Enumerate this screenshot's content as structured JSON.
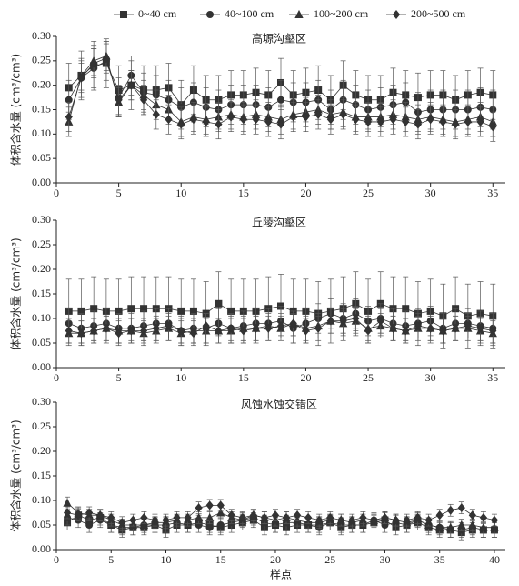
{
  "chart_data": [
    {
      "type": "line",
      "title": "高塬沟壑区",
      "ylabel": "体积含水量 (cm³/cm³)",
      "xlim": [
        0,
        36
      ],
      "xticks": [
        0,
        5,
        10,
        15,
        20,
        25,
        30,
        35
      ],
      "ylim": [
        0,
        0.3
      ],
      "yticks": [
        {
          "value": 0,
          "label": "0.00"
        },
        0.05,
        {
          "value": 0.1,
          "label": "0.10"
        },
        0.15,
        {
          "value": 0.2,
          "label": "0.20"
        },
        0.25,
        {
          "value": 0.3,
          "label": "0.30"
        }
      ],
      "x": [
        1,
        2,
        3,
        4,
        5,
        6,
        7,
        8,
        9,
        10,
        11,
        12,
        13,
        14,
        15,
        16,
        17,
        18,
        19,
        20,
        21,
        22,
        23,
        24,
        25,
        26,
        27,
        28,
        29,
        30,
        31,
        32,
        33,
        34,
        35
      ],
      "series": [
        {
          "name": "0~40 cm",
          "marker": "square",
          "color": "#333333",
          "error": 0.05,
          "values": [
            0.195,
            0.22,
            0.24,
            0.245,
            0.19,
            0.2,
            0.19,
            0.19,
            0.195,
            0.16,
            0.19,
            0.17,
            0.17,
            0.18,
            0.18,
            0.185,
            0.18,
            0.205,
            0.18,
            0.185,
            0.19,
            0.17,
            0.2,
            0.18,
            0.17,
            0.17,
            0.185,
            0.18,
            0.175,
            0.18,
            0.18,
            0.17,
            0.18,
            0.185,
            0.18
          ]
        },
        {
          "name": "40~100 cm",
          "marker": "circle",
          "color": "#333333",
          "error": 0.04,
          "values": [
            0.17,
            0.215,
            0.235,
            0.25,
            0.175,
            0.22,
            0.185,
            0.18,
            0.17,
            0.155,
            0.165,
            0.155,
            0.15,
            0.16,
            0.16,
            0.16,
            0.155,
            0.17,
            0.165,
            0.165,
            0.17,
            0.15,
            0.17,
            0.16,
            0.15,
            0.155,
            0.16,
            0.165,
            0.145,
            0.15,
            0.15,
            0.15,
            0.15,
            0.155,
            0.15
          ]
        },
        {
          "name": "100~200 cm",
          "marker": "triangle",
          "color": "#333333",
          "error": 0.03,
          "values": [
            0.125,
            0.22,
            0.25,
            0.26,
            0.165,
            0.2,
            0.18,
            0.16,
            0.15,
            0.125,
            0.135,
            0.13,
            0.135,
            0.14,
            0.135,
            0.14,
            0.135,
            0.13,
            0.14,
            0.145,
            0.15,
            0.14,
            0.145,
            0.135,
            0.135,
            0.135,
            0.14,
            0.135,
            0.13,
            0.135,
            0.13,
            0.125,
            0.13,
            0.135,
            0.125
          ]
        },
        {
          "name": "200~500 cm",
          "marker": "diamond",
          "color": "#333333",
          "error": 0.03,
          "values": [
            0.135,
            0.215,
            0.245,
            0.255,
            0.17,
            0.2,
            0.17,
            0.14,
            0.13,
            0.12,
            0.13,
            0.125,
            0.12,
            0.135,
            0.13,
            0.13,
            0.125,
            0.12,
            0.135,
            0.135,
            0.14,
            0.13,
            0.14,
            0.13,
            0.125,
            0.125,
            0.13,
            0.125,
            0.12,
            0.13,
            0.125,
            0.12,
            0.125,
            0.125,
            0.115
          ]
        }
      ]
    },
    {
      "type": "line",
      "title": "丘陵沟壑区",
      "ylabel": "体积含水量 (cm³/cm³)",
      "xlim": [
        0,
        36
      ],
      "xticks": [
        0,
        5,
        10,
        15,
        20,
        25,
        30,
        35
      ],
      "ylim": [
        0,
        0.3
      ],
      "yticks": [
        {
          "value": 0,
          "label": "0.00"
        },
        0.05,
        {
          "value": 0.1,
          "label": "0.10"
        },
        0.15,
        {
          "value": 0.2,
          "label": "0.20"
        },
        0.25,
        {
          "value": 0.3,
          "label": "0.30"
        }
      ],
      "x": [
        1,
        2,
        3,
        4,
        5,
        6,
        7,
        8,
        9,
        10,
        11,
        12,
        13,
        14,
        15,
        16,
        17,
        18,
        19,
        20,
        21,
        22,
        23,
        24,
        25,
        26,
        27,
        28,
        29,
        30,
        31,
        32,
        33,
        34,
        35
      ],
      "series": [
        {
          "marker": "square",
          "color": "#333333",
          "error": 0.065,
          "values": [
            0.115,
            0.115,
            0.12,
            0.115,
            0.115,
            0.12,
            0.12,
            0.12,
            0.12,
            0.115,
            0.115,
            0.11,
            0.13,
            0.115,
            0.115,
            0.115,
            0.12,
            0.125,
            0.115,
            0.115,
            0.11,
            0.115,
            0.12,
            0.13,
            0.115,
            0.13,
            0.12,
            0.12,
            0.11,
            0.115,
            0.105,
            0.12,
            0.105,
            0.11,
            0.105
          ]
        },
        {
          "marker": "circle",
          "color": "#333333",
          "error": 0.03,
          "values": [
            0.09,
            0.08,
            0.085,
            0.09,
            0.08,
            0.08,
            0.085,
            0.09,
            0.09,
            0.075,
            0.08,
            0.08,
            0.09,
            0.08,
            0.085,
            0.09,
            0.09,
            0.095,
            0.08,
            0.09,
            0.1,
            0.11,
            0.1,
            0.11,
            0.095,
            0.1,
            0.09,
            0.085,
            0.09,
            0.095,
            0.08,
            0.09,
            0.09,
            0.085,
            0.08
          ]
        },
        {
          "marker": "triangle",
          "color": "#333333",
          "error": 0.025,
          "values": [
            0.07,
            0.07,
            0.075,
            0.08,
            0.075,
            0.075,
            0.07,
            0.075,
            0.08,
            0.07,
            0.075,
            0.075,
            0.075,
            0.075,
            0.08,
            0.08,
            0.085,
            0.08,
            0.09,
            0.08,
            0.085,
            0.095,
            0.09,
            0.095,
            0.08,
            0.085,
            0.08,
            0.075,
            0.08,
            0.08,
            0.075,
            0.08,
            0.08,
            0.075,
            0.07
          ]
        },
        {
          "marker": "diamond",
          "color": "#333333",
          "error": 0.025,
          "values": [
            0.075,
            0.07,
            0.075,
            0.08,
            0.07,
            0.075,
            0.075,
            0.08,
            0.085,
            0.075,
            0.07,
            0.085,
            0.075,
            0.08,
            0.075,
            0.08,
            0.08,
            0.085,
            0.09,
            0.075,
            0.08,
            0.095,
            0.095,
            0.1,
            0.075,
            0.095,
            0.08,
            0.075,
            0.085,
            0.08,
            0.075,
            0.08,
            0.085,
            0.08,
            0.075
          ]
        }
      ]
    },
    {
      "type": "line",
      "title": "风蚀水蚀交错区",
      "ylabel": "体积含水量 (cm³/cm³)",
      "xlabel": "样点",
      "xlim": [
        0,
        41
      ],
      "xticks": [
        0,
        5,
        10,
        15,
        20,
        25,
        30,
        35,
        40
      ],
      "ylim": [
        0,
        0.3
      ],
      "yticks": [
        {
          "value": 0,
          "label": "0.00"
        },
        0.05,
        {
          "value": 0.1,
          "label": "0.10"
        },
        0.15,
        {
          "value": 0.2,
          "label": "0.20"
        },
        0.25,
        {
          "value": 0.3,
          "label": "0.30"
        }
      ],
      "x": [
        1,
        2,
        3,
        4,
        5,
        6,
        7,
        8,
        9,
        10,
        11,
        12,
        13,
        14,
        15,
        16,
        17,
        18,
        19,
        20,
        21,
        22,
        23,
        24,
        25,
        26,
        27,
        28,
        29,
        30,
        31,
        32,
        33,
        34,
        35,
        36,
        37,
        38,
        39,
        40
      ],
      "series": [
        {
          "marker": "square",
          "color": "#333333",
          "error": 0.015,
          "values": [
            0.055,
            0.07,
            0.06,
            0.065,
            0.05,
            0.04,
            0.045,
            0.045,
            0.05,
            0.04,
            0.05,
            0.05,
            0.055,
            0.05,
            0.045,
            0.05,
            0.055,
            0.06,
            0.045,
            0.05,
            0.045,
            0.05,
            0.05,
            0.05,
            0.055,
            0.045,
            0.05,
            0.05,
            0.055,
            0.06,
            0.045,
            0.05,
            0.055,
            0.045,
            0.04,
            0.04,
            0.035,
            0.04,
            0.04,
            0.04
          ]
        },
        {
          "marker": "circle",
          "color": "#333333",
          "error": 0.015,
          "values": [
            0.065,
            0.06,
            0.05,
            0.06,
            0.05,
            0.045,
            0.045,
            0.05,
            0.05,
            0.05,
            0.055,
            0.05,
            0.05,
            0.045,
            0.05,
            0.055,
            0.06,
            0.065,
            0.055,
            0.05,
            0.055,
            0.055,
            0.05,
            0.045,
            0.055,
            0.05,
            0.05,
            0.05,
            0.06,
            0.05,
            0.055,
            0.05,
            0.06,
            0.05,
            0.045,
            0.04,
            0.04,
            0.045,
            0.04,
            0.04
          ]
        },
        {
          "marker": "triangle",
          "color": "#333333",
          "error": 0.012,
          "values": [
            0.095,
            0.075,
            0.07,
            0.07,
            0.06,
            0.05,
            0.05,
            0.05,
            0.055,
            0.055,
            0.06,
            0.06,
            0.065,
            0.065,
            0.075,
            0.065,
            0.06,
            0.07,
            0.065,
            0.06,
            0.065,
            0.06,
            0.055,
            0.055,
            0.06,
            0.06,
            0.055,
            0.06,
            0.06,
            0.065,
            0.06,
            0.055,
            0.06,
            0.05,
            0.045,
            0.045,
            0.05,
            0.05,
            0.045,
            0.045
          ]
        },
        {
          "marker": "diamond",
          "color": "#333333",
          "error": 0.012,
          "values": [
            0.075,
            0.07,
            0.075,
            0.07,
            0.065,
            0.055,
            0.06,
            0.065,
            0.06,
            0.06,
            0.065,
            0.065,
            0.085,
            0.09,
            0.09,
            0.07,
            0.065,
            0.07,
            0.065,
            0.07,
            0.065,
            0.07,
            0.065,
            0.06,
            0.065,
            0.06,
            0.06,
            0.065,
            0.06,
            0.065,
            0.06,
            0.06,
            0.065,
            0.06,
            0.07,
            0.08,
            0.085,
            0.07,
            0.065,
            0.06
          ]
        }
      ]
    }
  ]
}
